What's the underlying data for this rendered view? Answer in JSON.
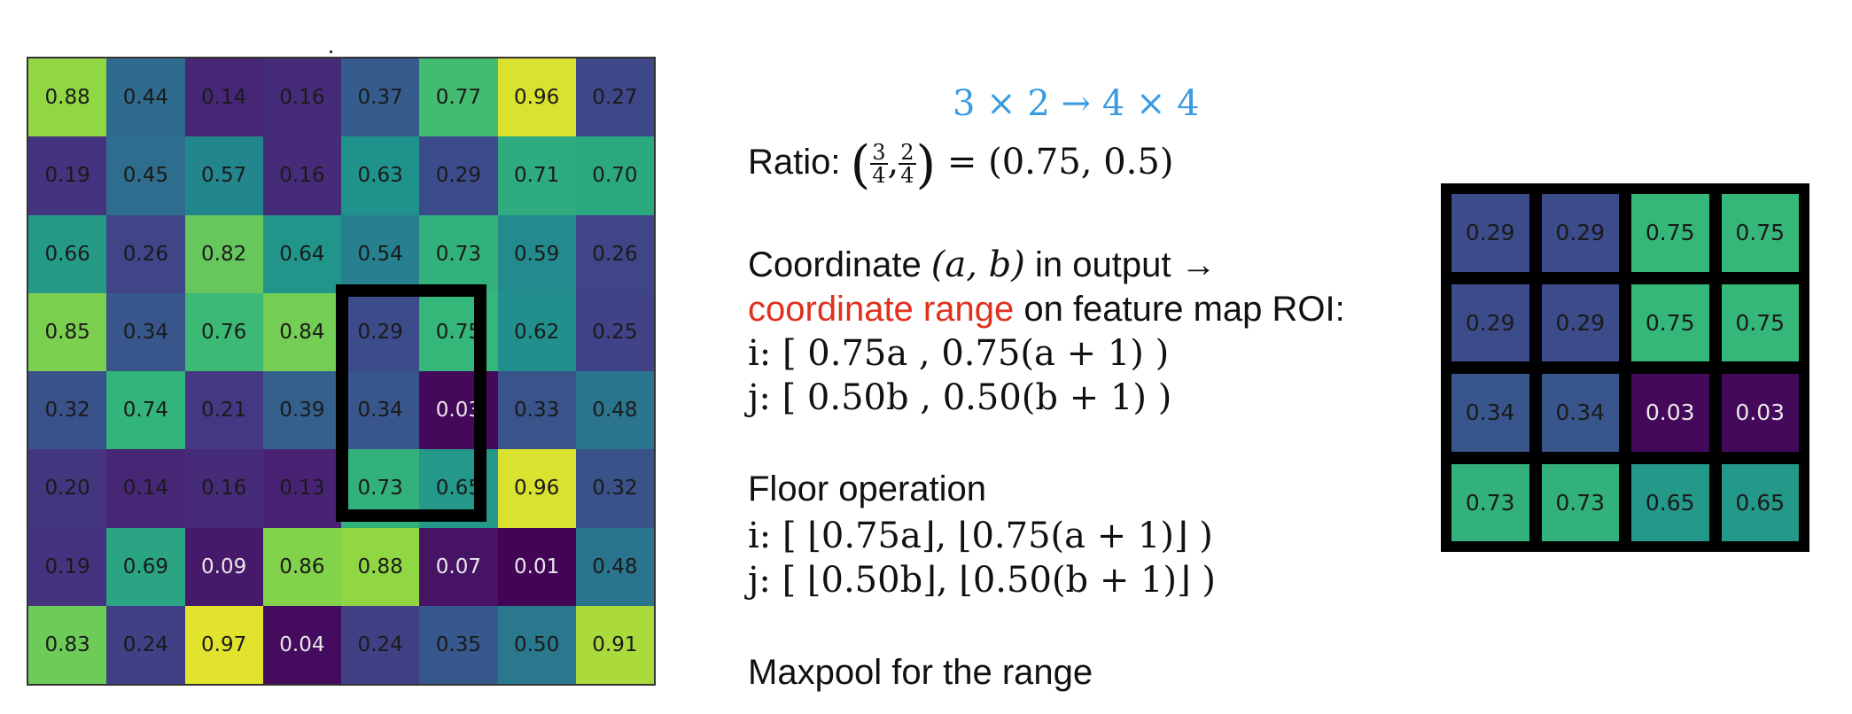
{
  "feature_map": {
    "rows": [
      [
        "0.88",
        "0.44",
        "0.14",
        "0.16",
        "0.37",
        "0.77",
        "0.96",
        "0.27"
      ],
      [
        "0.19",
        "0.45",
        "0.57",
        "0.16",
        "0.63",
        "0.29",
        "0.71",
        "0.70"
      ],
      [
        "0.66",
        "0.26",
        "0.82",
        "0.64",
        "0.54",
        "0.73",
        "0.59",
        "0.26"
      ],
      [
        "0.85",
        "0.34",
        "0.76",
        "0.84",
        "0.29",
        "0.75",
        "0.62",
        "0.25"
      ],
      [
        "0.32",
        "0.74",
        "0.21",
        "0.39",
        "0.34",
        "0.03",
        "0.33",
        "0.48"
      ],
      [
        "0.20",
        "0.14",
        "0.16",
        "0.13",
        "0.73",
        "0.65",
        "0.96",
        "0.32"
      ],
      [
        "0.19",
        "0.69",
        "0.09",
        "0.86",
        "0.88",
        "0.07",
        "0.01",
        "0.48"
      ],
      [
        "0.83",
        "0.24",
        "0.97",
        "0.04",
        "0.24",
        "0.35",
        "0.50",
        "0.91"
      ]
    ],
    "roi": {
      "row_start": 3,
      "col_start": 4,
      "rows": 3,
      "cols": 2
    }
  },
  "explanation": {
    "shape_transform": "3 × 2 → 4 × 4",
    "ratio_label": "Ratio: ",
    "ratio_frac1_num": "3",
    "ratio_frac1_den": "4",
    "ratio_frac2_num": "2",
    "ratio_frac2_den": "4",
    "ratio_result": " = (0.75, 0.5)",
    "coord_prefix": "Coordinate ",
    "coord_var": "(a, b)",
    "coord_suffix": " in output →",
    "coord_range": "coordinate range",
    "coord_range_suffix": " on feature map ROI:",
    "i_range": "i: [ 0.75a ,  0.75(a + 1) )",
    "j_range": "j: [ 0.50b ,  0.50(b + 1) )",
    "floor_title": "Floor operation",
    "i_floor": "i: [ ⌊0.75a⌋,  ⌊0.75(a + 1)⌋ )",
    "j_floor": "j: [ ⌊0.50b⌋,  ⌊0.50(b + 1)⌋ )",
    "maxpool": "Maxpool for the range"
  },
  "output_map": {
    "rows": [
      [
        "0.29",
        "0.29",
        "0.75",
        "0.75"
      ],
      [
        "0.29",
        "0.29",
        "0.75",
        "0.75"
      ],
      [
        "0.34",
        "0.34",
        "0.03",
        "0.03"
      ],
      [
        "0.73",
        "0.73",
        "0.65",
        "0.65"
      ]
    ]
  },
  "colors": {
    "text": "#111111",
    "shape_blue": "#3a9be0",
    "highlight_red": "#e0301e",
    "frame": "#000000"
  }
}
